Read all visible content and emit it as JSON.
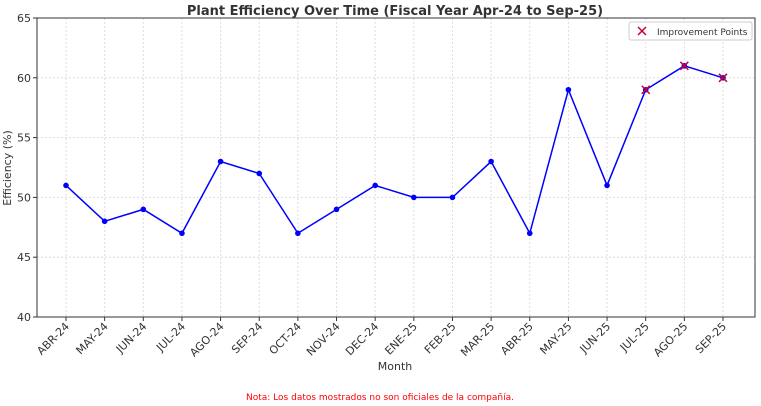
{
  "chart_data": {
    "type": "line",
    "title": "Plant Efficiency Over Time (Fiscal Year Apr-24 to Sep-25)",
    "xlabel": "Month",
    "ylabel": "Efficiency (%)",
    "categories": [
      "ABR-24",
      "MAY-24",
      "JUN-24",
      "JUL-24",
      "AGO-24",
      "SEP-24",
      "OCT-24",
      "NOV-24",
      "DEC-24",
      "ENE-25",
      "FEB-25",
      "MAR-25",
      "ABR-25",
      "MAY-25",
      "JUN-25",
      "JUL-25",
      "AGO-25",
      "SEP-25"
    ],
    "series": [
      {
        "values": [
          51,
          48,
          49,
          47,
          53,
          52,
          47,
          49,
          51,
          50,
          50,
          53,
          47,
          59,
          51,
          59,
          61,
          60
        ],
        "color": "#0000ff"
      }
    ],
    "improvement_points": {
      "name": "Improvement Points",
      "categories": [
        "JUL-25",
        "AGO-25",
        "SEP-25"
      ],
      "values": [
        59,
        61,
        60
      ],
      "color": "#cc0033",
      "marker": "x"
    },
    "ylim": [
      40,
      65
    ],
    "yticks": [
      40,
      45,
      50,
      55,
      60,
      65
    ],
    "grid": true,
    "legend_position": "top-right"
  },
  "note": {
    "text": "Nota: Los datos mostrados no son oficiales de la compañía.",
    "color": "#ff0000"
  }
}
